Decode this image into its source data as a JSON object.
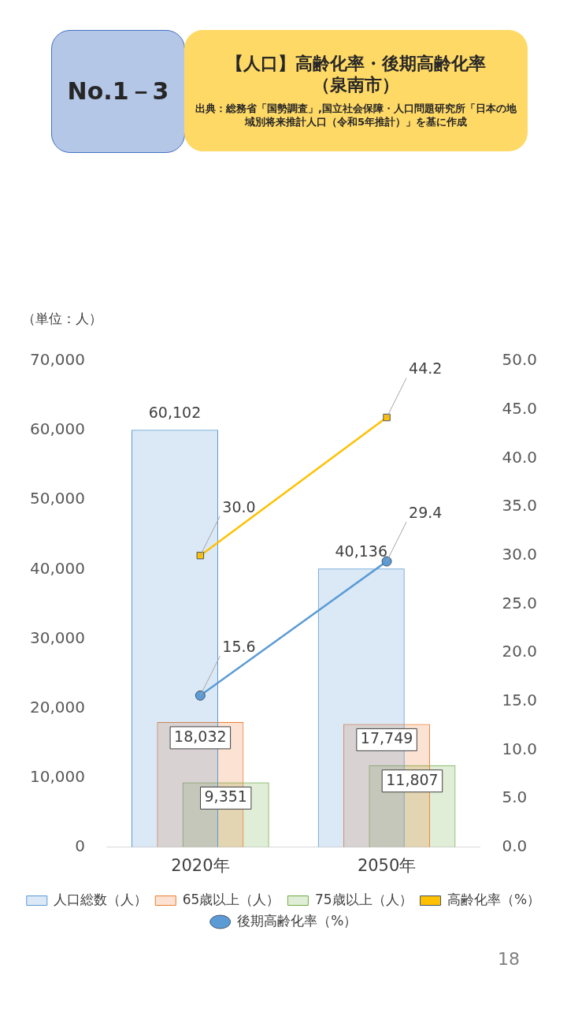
{
  "chart_data": {
    "type": "bar",
    "title": "【人口】高齢化率・後期高齢化率（泉南市）",
    "annotations": [
      "No.1－3",
      "出典：総務省「国勢調査」,国立社会保障・人口問題研究所「日本の地域別将来推計人口（令和5年推計）」を基に作成",
      "18"
    ],
    "ylabel": "（単位：人）",
    "categories": [
      "2020年",
      "2050年"
    ],
    "series": [
      {
        "name": "人口総数（人）",
        "color": "#5b9bd5",
        "values": [
          60102,
          40136
        ],
        "value_labels": [
          "60,102",
          "40,136"
        ]
      },
      {
        "name": "65歳以上（人）",
        "color": "#ed7d31",
        "values": [
          18032,
          17749
        ],
        "value_labels": [
          "18,032",
          "17,749"
        ]
      },
      {
        "name": "75歳以上（人）",
        "color": "#70ad47",
        "values": [
          9351,
          11807
        ],
        "value_labels": [
          "9,351",
          "11,807"
        ]
      },
      {
        "name": "高齢化率（%）",
        "type": "line",
        "axis": "y2",
        "marker": "square",
        "color": "#ffc000",
        "values": [
          30.0,
          44.2
        ],
        "value_labels": [
          "30.0",
          "44.2"
        ]
      },
      {
        "name": "後期高齢化率（%）",
        "type": "line",
        "axis": "y2",
        "marker": "circle",
        "color": "#5b9bd5",
        "values": [
          15.6,
          29.4
        ],
        "value_labels": [
          "15.6",
          "29.4"
        ]
      }
    ],
    "ylim": [
      0,
      70000
    ],
    "yticks": [
      {
        "value": 0,
        "label": "0"
      },
      {
        "value": 10000,
        "label": "10,000"
      },
      {
        "value": 20000,
        "label": "20,000"
      },
      {
        "value": 30000,
        "label": "30,000"
      },
      {
        "value": 40000,
        "label": "40,000"
      },
      {
        "value": 50000,
        "label": "50,000"
      },
      {
        "value": 60000,
        "label": "60,000"
      },
      {
        "value": 70000,
        "label": "70,000"
      }
    ],
    "y2lim": [
      0,
      50
    ],
    "y2ticks": [
      {
        "value": 0,
        "label": "0.0"
      },
      {
        "value": 5,
        "label": "5.0"
      },
      {
        "value": 10,
        "label": "10.0"
      },
      {
        "value": 15,
        "label": "15.0"
      },
      {
        "value": 20,
        "label": "20.0"
      },
      {
        "value": 25,
        "label": "25.0"
      },
      {
        "value": 30,
        "label": "30.0"
      },
      {
        "value": 35,
        "label": "35.0"
      },
      {
        "value": 40,
        "label": "40.0"
      },
      {
        "value": 45,
        "label": "45.0"
      },
      {
        "value": 50,
        "label": "50.0"
      }
    ],
    "grid": false,
    "legend": "bottom"
  }
}
